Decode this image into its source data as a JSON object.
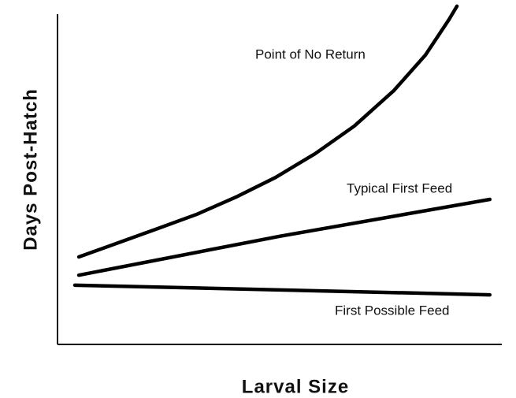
{
  "chart_data": {
    "type": "line",
    "x_label": "Larval Size",
    "y_label": "Days Post-Hatch",
    "xlim": [
      0,
      100
    ],
    "ylim": [
      0,
      100
    ],
    "series": [
      {
        "name": "Point of No Return",
        "color": "#000000",
        "x": [
          4.8,
          22.5,
          31.4,
          40.2,
          49.1,
          58.0,
          66.8,
          75.7,
          82.8,
          88.1,
          89.9
        ],
        "values": [
          25.4,
          33.6,
          37.8,
          42.8,
          48.5,
          55.4,
          63.4,
          73.7,
          84.0,
          94.3,
          98.2
        ]
      },
      {
        "name": "Typical First Feed",
        "color": "#000000",
        "x": [
          4.8,
          50,
          97.3
        ],
        "values": [
          20.1,
          31.4,
          42.1
        ]
      },
      {
        "name": "First Possible Feed",
        "color": "#000000",
        "x": [
          3.9,
          97.3
        ],
        "values": [
          17.2,
          14.4
        ]
      }
    ]
  }
}
